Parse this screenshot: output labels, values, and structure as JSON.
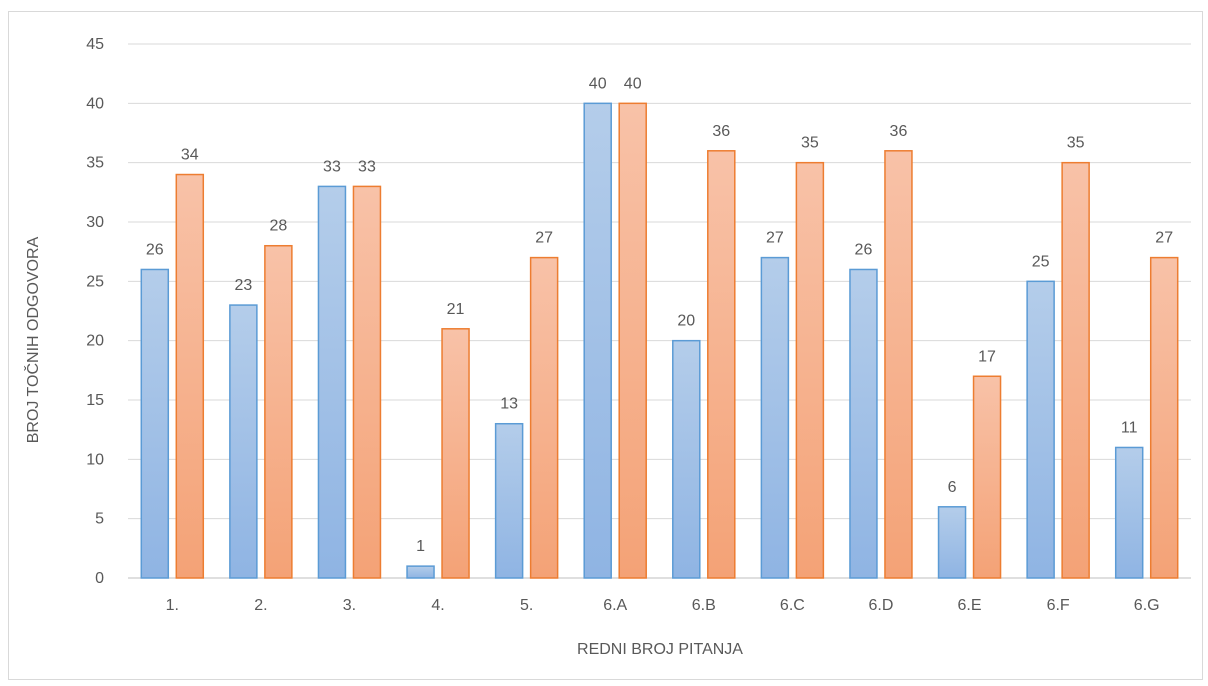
{
  "chart_data": {
    "type": "bar",
    "title": "",
    "xlabel": "REDNI BROJ PITANJA",
    "ylabel": "BROJ TOČNIH ODGOVORA",
    "ylim": [
      0,
      45
    ],
    "yticks": [
      0,
      5,
      10,
      15,
      20,
      25,
      30,
      35,
      40,
      45
    ],
    "grid": true,
    "legend": "none",
    "categories": [
      "1.",
      "2.",
      "3.",
      "4.",
      "5.",
      "6.A",
      "6.B",
      "6.C",
      "6.D",
      "6.E",
      "6.F",
      "6.G"
    ],
    "series": [
      {
        "values": [
          26,
          23,
          33,
          1,
          13,
          40,
          20,
          27,
          26,
          6,
          25,
          11
        ],
        "color": "#5b9bd5"
      },
      {
        "values": [
          34,
          28,
          33,
          21,
          27,
          40,
          36,
          35,
          36,
          17,
          35,
          27
        ],
        "color": "#ed7d31"
      }
    ]
  }
}
